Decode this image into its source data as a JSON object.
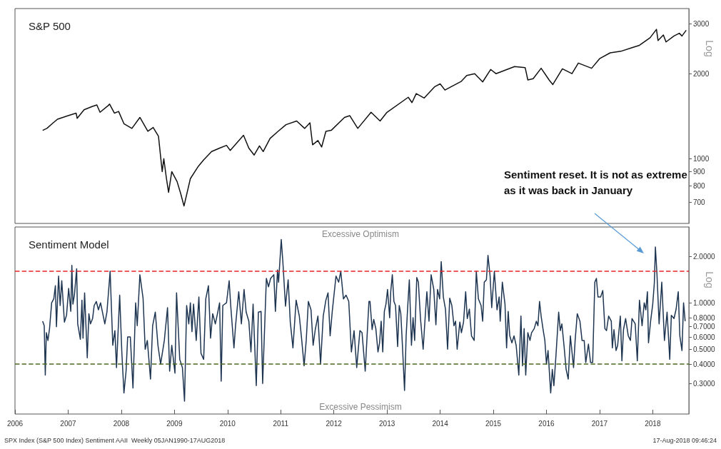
{
  "chart_data": [
    {
      "type": "line",
      "title": "S&P 500",
      "ylabel": "Log",
      "log": true,
      "tick_labels": "y",
      "xlim": [
        2006,
        2018.68
      ],
      "ylim": [
        590,
        3400
      ],
      "yticks": [
        700,
        800,
        900,
        1000,
        2000,
        3000
      ],
      "x": [
        2006.52,
        2006.6,
        2006.7,
        2006.8,
        2006.9,
        2007.0,
        2007.15,
        2007.17,
        2007.3,
        2007.45,
        2007.54,
        2007.6,
        2007.75,
        2007.78,
        2007.87,
        2007.95,
        2008.05,
        2008.2,
        2008.35,
        2008.5,
        2008.6,
        2008.7,
        2008.77,
        2008.8,
        2008.85,
        2008.89,
        2008.95,
        2009.05,
        2009.12,
        2009.18,
        2009.3,
        2009.45,
        2009.55,
        2009.7,
        2009.85,
        2009.98,
        2010.05,
        2010.3,
        2010.4,
        2010.5,
        2010.6,
        2010.67,
        2010.8,
        2010.95,
        2011.1,
        2011.3,
        2011.45,
        2011.55,
        2011.6,
        2011.7,
        2011.77,
        2011.85,
        2011.95,
        2012.2,
        2012.3,
        2012.45,
        2012.7,
        2012.87,
        2013.0,
        2013.4,
        2013.47,
        2013.55,
        2013.7,
        2013.9,
        2014.0,
        2014.09,
        2014.4,
        2014.5,
        2014.65,
        2014.8,
        2014.95,
        2015.05,
        2015.4,
        2015.6,
        2015.65,
        2015.75,
        2015.9,
        2016.05,
        2016.12,
        2016.3,
        2016.48,
        2016.6,
        2016.85,
        2017.0,
        2017.2,
        2017.4,
        2017.6,
        2017.75,
        2017.95,
        2018.07,
        2018.1,
        2018.2,
        2018.25,
        2018.4,
        2018.5,
        2018.55,
        2018.63
      ],
      "series": [
        {
          "color": "#111111",
          "values": [
            1260,
            1280,
            1330,
            1380,
            1400,
            1420,
            1450,
            1390,
            1490,
            1530,
            1550,
            1460,
            1540,
            1560,
            1450,
            1470,
            1330,
            1280,
            1400,
            1250,
            1290,
            1200,
            900,
            1000,
            850,
            760,
            900,
            830,
            750,
            680,
            850,
            940,
            990,
            1060,
            1090,
            1115,
            1070,
            1210,
            1090,
            1030,
            1110,
            1060,
            1180,
            1250,
            1320,
            1360,
            1280,
            1340,
            1120,
            1160,
            1100,
            1250,
            1260,
            1400,
            1420,
            1280,
            1460,
            1360,
            1460,
            1650,
            1580,
            1700,
            1640,
            1800,
            1840,
            1750,
            1880,
            1970,
            2000,
            1870,
            2070,
            2000,
            2120,
            2100,
            1900,
            1920,
            2090,
            1900,
            1830,
            2080,
            2000,
            2180,
            2090,
            2260,
            2370,
            2400,
            2470,
            2520,
            2680,
            2870,
            2620,
            2740,
            2590,
            2720,
            2780,
            2720,
            2850
          ]
        }
      ]
    },
    {
      "type": "line",
      "title": "Sentiment Model",
      "ylabel": "Log",
      "log": true,
      "xlim": [
        2006,
        2018.68
      ],
      "ylim": [
        0.19,
        3.1
      ],
      "xticks": [
        2006,
        2007,
        2008,
        2009,
        2010,
        2011,
        2012,
        2013,
        2014,
        2015,
        2016,
        2017,
        2018
      ],
      "yticks": [
        {
          "value": 0.3,
          "label": "0.3000"
        },
        {
          "value": 0.4,
          "label": "0.4000"
        },
        {
          "value": 0.5,
          "label": "0.5000"
        },
        {
          "value": 0.6,
          "label": "0.6000"
        },
        {
          "value": 0.7,
          "label": "0.7000"
        },
        {
          "value": 0.8,
          "label": "0.8000"
        },
        {
          "value": 1.0,
          "label": "1.0000"
        },
        {
          "value": 2.0,
          "label": "2.0000"
        }
      ],
      "ref_lines": [
        {
          "axis": "y",
          "value": 1.6,
          "color": "#e8262b",
          "line_style": "dashed"
        },
        {
          "axis": "y",
          "value": 0.4,
          "color": "#4b6a1f",
          "line_style": "dashed"
        }
      ],
      "annotations": [
        "Excessive Optimism",
        "Excessive Pessimism",
        "SPX Index (S&P 500 Index) Sentiment AAII  Weekly 05JAN1990-17AUG2018",
        "17-Aug-2018 09:46:24",
        "Sentiment reset. It is not as extreme as it was back in January"
      ],
      "x": [
        2006.52,
        2006.55,
        2006.57,
        2006.59,
        2006.62,
        2006.65,
        2006.69,
        2006.73,
        2006.76,
        2006.78,
        2006.82,
        2006.85,
        2006.88,
        2006.93,
        2006.97,
        2007.01,
        2007.05,
        2007.07,
        2007.09,
        2007.12,
        2007.16,
        2007.18,
        2007.23,
        2007.26,
        2007.28,
        2007.31,
        2007.36,
        2007.39,
        2007.42,
        2007.46,
        2007.49,
        2007.53,
        2007.57,
        2007.61,
        2007.69,
        2007.73,
        2007.79,
        2007.84,
        2007.88,
        2007.91,
        2007.97,
        2008.01,
        2008.05,
        2008.09,
        2008.12,
        2008.17,
        2008.22,
        2008.27,
        2008.3,
        2008.35,
        2008.41,
        2008.45,
        2008.49,
        2008.55,
        2008.59,
        2008.64,
        2008.69,
        2008.74,
        2008.81,
        2008.87,
        2008.91,
        2008.95,
        2009.01,
        2009.04,
        2009.1,
        2009.15,
        2009.19,
        2009.23,
        2009.27,
        2009.3,
        2009.33,
        2009.36,
        2009.41,
        2009.46,
        2009.5,
        2009.55,
        2009.59,
        2009.64,
        2009.68,
        2009.72,
        2009.77,
        2009.81,
        2009.85,
        2009.88,
        2009.91,
        2009.98,
        2010.03,
        2010.06,
        2010.12,
        2010.15,
        2010.21,
        2010.26,
        2010.31,
        2010.35,
        2010.4,
        2010.44,
        2010.48,
        2010.54,
        2010.58,
        2010.63,
        2010.66,
        2010.73,
        2010.77,
        2010.81,
        2010.87,
        2010.9,
        2010.94,
        2010.96,
        2011.01,
        2011.04,
        2011.09,
        2011.14,
        2011.18,
        2011.23,
        2011.29,
        2011.35,
        2011.39,
        2011.44,
        2011.48,
        2011.52,
        2011.57,
        2011.61,
        2011.65,
        2011.7,
        2011.75,
        2011.8,
        2011.85,
        2011.89,
        2011.93,
        2011.97,
        2012.04,
        2012.09,
        2012.13,
        2012.18,
        2012.23,
        2012.28,
        2012.33,
        2012.38,
        2012.43,
        2012.49,
        2012.53,
        2012.59,
        2012.66,
        2012.68,
        2012.72,
        2012.75,
        2012.79,
        2012.83,
        2012.86,
        2012.89,
        2012.92,
        2012.95,
        2012.98,
        2013.01,
        2013.05,
        2013.07,
        2013.1,
        2013.13,
        2013.16,
        2013.2,
        2013.23,
        2013.26,
        2013.29,
        2013.33,
        2013.36,
        2013.39,
        2013.42,
        2013.46,
        2013.49,
        2013.52,
        2013.56,
        2013.59,
        2013.63,
        2013.68,
        2013.71,
        2013.75,
        2013.79,
        2013.83,
        2013.88,
        2013.92,
        2013.95,
        2013.99,
        2014.02,
        2014.06,
        2014.1,
        2014.14,
        2014.18,
        2014.22,
        2014.26,
        2014.29,
        2014.32,
        2014.37,
        2014.4,
        2014.44,
        2014.48,
        2014.51,
        2014.55,
        2014.59,
        2014.64,
        2014.68,
        2014.72,
        2014.77,
        2014.8,
        2014.83,
        2014.87,
        2014.9,
        2014.94,
        2014.97,
        2015.02,
        2015.07,
        2015.11,
        2015.13,
        2015.17,
        2015.22,
        2015.25,
        2015.28,
        2015.31,
        2015.35,
        2015.39,
        2015.43,
        2015.48,
        2015.52,
        2015.55,
        2015.58,
        2015.61,
        2015.65,
        2015.69,
        2015.72,
        2015.77,
        2015.81,
        2015.84,
        2015.87,
        2015.9,
        2015.94,
        2015.97,
        2016.0,
        2016.03,
        2016.08,
        2016.11,
        2016.14,
        2016.18,
        2016.23,
        2016.26,
        2016.29,
        2016.33,
        2016.37,
        2016.41,
        2016.45,
        2016.51,
        2016.54,
        2016.58,
        2016.63,
        2016.67,
        2016.71,
        2016.74,
        2016.79,
        2016.83,
        2016.87,
        2016.91,
        2016.94,
        2016.97,
        2017.02,
        2017.06,
        2017.1,
        2017.13,
        2017.17,
        2017.22,
        2017.24,
        2017.27,
        2017.31,
        2017.34,
        2017.39,
        2017.42,
        2017.45,
        2017.49,
        2017.54,
        2017.58,
        2017.61,
        2017.67,
        2017.71,
        2017.75,
        2017.8,
        2017.84,
        2017.87,
        2017.9,
        2017.92,
        2017.96,
        2018.0,
        2018.03,
        2018.05,
        2018.08,
        2018.12,
        2018.17,
        2018.22,
        2018.27,
        2018.32,
        2018.35,
        2018.4,
        2018.44,
        2018.48,
        2018.51,
        2018.55,
        2018.58,
        2018.61
      ],
      "series": [
        {
          "color": "#1e3551",
          "values": [
            0.76,
            0.71,
            0.34,
            0.64,
            0.57,
            0.68,
            1.0,
            1.06,
            1.29,
            0.7,
            1.49,
            0.96,
            1.39,
            0.75,
            0.83,
            1.24,
            0.88,
            1.75,
            0.98,
            1.14,
            1.66,
            0.73,
            0.58,
            1.04,
            0.59,
            1.16,
            0.44,
            0.85,
            0.73,
            0.79,
            0.96,
            1.02,
            0.9,
            1.0,
            0.73,
            0.87,
            1.6,
            0.53,
            0.66,
            0.38,
            1.12,
            0.48,
            0.26,
            0.36,
            0.6,
            0.6,
            0.28,
            1.0,
            0.71,
            1.52,
            1.07,
            0.5,
            0.57,
            0.32,
            0.71,
            0.87,
            0.53,
            0.4,
            0.57,
            0.93,
            0.36,
            0.53,
            0.35,
            1.16,
            0.43,
            0.38,
            0.23,
            0.96,
            0.73,
            1.0,
            0.65,
            0.98,
            0.57,
            1.09,
            0.47,
            0.43,
            1.06,
            1.29,
            0.59,
            0.85,
            0.73,
            0.85,
            1.0,
            0.31,
            0.96,
            1.0,
            1.39,
            0.95,
            0.51,
            0.71,
            1.18,
            0.73,
            1.22,
            0.87,
            0.76,
            0.48,
            0.98,
            0.29,
            0.87,
            0.88,
            0.3,
            1.44,
            1.27,
            1.44,
            1.52,
            0.88,
            1.63,
            1.36,
            2.57,
            1.85,
            0.95,
            1.41,
            0.75,
            0.51,
            1.04,
            0.82,
            0.6,
            0.39,
            0.57,
            1.02,
            0.9,
            0.53,
            0.67,
            0.82,
            0.4,
            0.82,
            1.04,
            1.16,
            0.61,
            0.88,
            1.49,
            1.36,
            1.6,
            1.06,
            1.12,
            1.02,
            0.48,
            0.66,
            0.38,
            0.66,
            0.64,
            0.36,
            1.02,
            1.02,
            0.67,
            0.78,
            0.68,
            0.48,
            0.55,
            0.76,
            0.48,
            0.88,
            0.98,
            1.22,
            0.8,
            1.18,
            1.52,
            1.02,
            0.96,
            0.52,
            0.96,
            0.85,
            0.53,
            0.27,
            0.61,
            0.95,
            1.41,
            0.53,
            0.8,
            0.57,
            1.46,
            1.36,
            0.79,
            0.5,
            0.73,
            1.18,
            0.76,
            1.52,
            1.22,
            0.72,
            1.22,
            1.06,
            1.85,
            1.09,
            0.91,
            0.5,
            1.07,
            0.96,
            0.71,
            0.76,
            0.5,
            0.75,
            0.64,
            0.75,
            1.18,
            0.79,
            0.91,
            0.61,
            0.57,
            1.6,
            1.06,
            0.96,
            0.76,
            1.36,
            1.41,
            2.03,
            1.49,
            0.93,
            1.6,
            0.9,
            1.09,
            0.76,
            1.36,
            0.98,
            0.51,
            0.88,
            0.61,
            0.55,
            0.61,
            0.53,
            0.34,
            0.82,
            0.39,
            0.68,
            0.34,
            0.64,
            0.57,
            0.64,
            0.68,
            0.76,
            0.71,
            1.02,
            0.82,
            0.66,
            0.57,
            0.4,
            0.49,
            0.26,
            0.37,
            0.29,
            0.46,
            0.87,
            0.66,
            0.73,
            0.53,
            0.37,
            0.32,
            0.61,
            0.38,
            0.57,
            0.85,
            0.76,
            0.57,
            0.57,
            0.41,
            0.54,
            0.41,
            0.41,
            1.36,
            1.44,
            1.09,
            1.09,
            1.2,
            0.68,
            0.66,
            0.82,
            0.76,
            0.51,
            0.67,
            0.49,
            0.53,
            0.82,
            0.42,
            0.67,
            0.79,
            0.61,
            0.57,
            0.79,
            0.73,
            0.42,
            1.04,
            0.71,
            1.0,
            0.9,
            1.18,
            0.55,
            0.76,
            0.98,
            1.34,
            2.3,
            1.52,
            0.73,
            1.36,
            0.57,
            0.87,
            0.43,
            0.83,
            0.79,
            0.91,
            1.18,
            0.61,
            0.49,
            1.0,
            0.76
          ]
        }
      ]
    }
  ]
}
